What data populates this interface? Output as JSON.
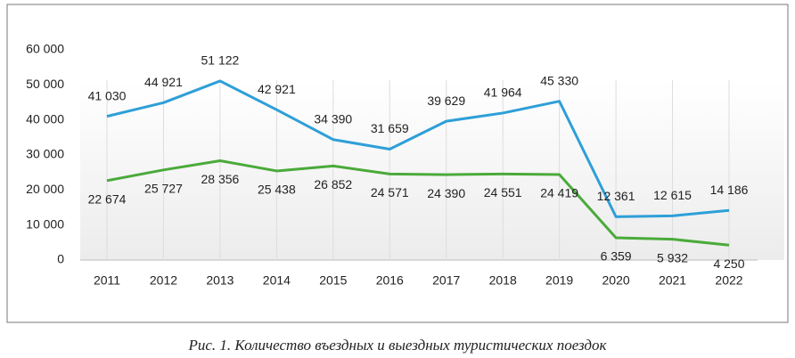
{
  "chart_data": {
    "type": "line",
    "caption": "Рис. 1. Количество въездных и выездных туристических поездок",
    "categories": [
      "2011",
      "2012",
      "2013",
      "2014",
      "2015",
      "2016",
      "2017",
      "2018",
      "2019",
      "2020",
      "2021",
      "2022"
    ],
    "series": [
      {
        "color": "#2e9fd8",
        "values": [
          41030,
          44921,
          51122,
          42921,
          34390,
          31659,
          39629,
          41964,
          45330,
          12361,
          12615,
          14186
        ],
        "value_labels": [
          "41 030",
          "44 921",
          "51 122",
          "42 921",
          "34 390",
          "31 659",
          "39 629",
          "41 964",
          "45 330",
          "12 361",
          "12 615",
          "14 186"
        ]
      },
      {
        "color": "#4aaa3a",
        "values": [
          22674,
          25727,
          28356,
          25438,
          26852,
          24571,
          24390,
          24551,
          24419,
          6359,
          5932,
          4250
        ],
        "value_labels": [
          "22 674",
          "25 727",
          "28 356",
          "25 438",
          "26 852",
          "24 571",
          "24 390",
          "24 551",
          "24 419",
          "6 359",
          "5 932",
          "4 250"
        ]
      }
    ],
    "ylim": [
      0,
      60000
    ],
    "yticks": [
      {
        "value": 0,
        "label": "0"
      },
      {
        "value": 10000,
        "label": "10 000"
      },
      {
        "value": 20000,
        "label": "20 000"
      },
      {
        "value": 30000,
        "label": "30 000"
      },
      {
        "value": 40000,
        "label": "40 000"
      },
      {
        "value": 50000,
        "label": "50 000"
      },
      {
        "value": 60000,
        "label": "60 000"
      }
    ],
    "grid": true
  }
}
